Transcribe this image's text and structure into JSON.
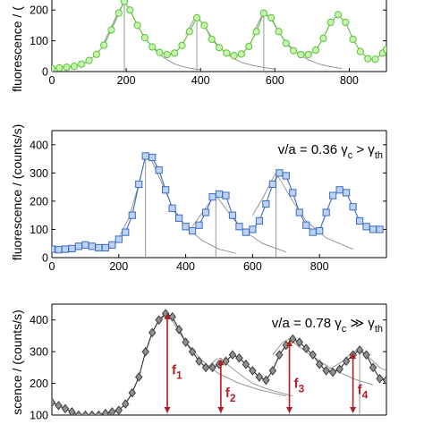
{
  "chart_data": [
    {
      "type": "scatter",
      "title": "",
      "ylabel": "fluorescence / (counts/s)",
      "ylabel_visible": "fluorescence / (",
      "annotation": "",
      "xlim": [
        0,
        900
      ],
      "ylim": [
        0,
        250
      ],
      "xticks": [
        0,
        200,
        400,
        600,
        800
      ],
      "yticks": [
        0,
        100,
        200
      ],
      "ytick_labels": [
        "0",
        "100",
        "200"
      ],
      "grid": false,
      "colors": {
        "marker_fill": "#c8f5b0",
        "marker_edge": "#59c23a",
        "line": "#59c23a",
        "fit": "#8c8c8c"
      },
      "marker": "circle",
      "series": [
        {
          "x": [
            0,
            20,
            40,
            60,
            80,
            100,
            120,
            140,
            160,
            180,
            195,
            210,
            230,
            250,
            270,
            290,
            310,
            330,
            350,
            370,
            390,
            410,
            430,
            450,
            470,
            490,
            510,
            530,
            550,
            570,
            590,
            610,
            630,
            650,
            670,
            690,
            710,
            730,
            750,
            770,
            790,
            810,
            830,
            850,
            870,
            890,
            900
          ],
          "values": [
            10,
            12,
            14,
            17,
            24,
            36,
            56,
            86,
            135,
            190,
            228,
            200,
            150,
            110,
            80,
            62,
            55,
            60,
            85,
            130,
            175,
            150,
            105,
            78,
            60,
            52,
            57,
            82,
            130,
            190,
            175,
            130,
            92,
            68,
            55,
            55,
            70,
            108,
            160,
            185,
            160,
            105,
            65,
            42,
            40,
            60,
            72
          ]
        }
      ],
      "fit_curves": [
        {
          "x": [
            140,
            160,
            180,
            195,
            210,
            230,
            250,
            270,
            290,
            310,
            330,
            350,
            370,
            400
          ],
          "values": [
            95,
            145,
            195,
            228,
            200,
            150,
            110,
            80,
            55,
            38,
            25,
            17,
            11,
            6
          ]
        },
        {
          "x": [
            360,
            380,
            390,
            410,
            430,
            450,
            470,
            490,
            510,
            540,
            570,
            600
          ],
          "values": [
            120,
            165,
            178,
            150,
            110,
            80,
            58,
            42,
            30,
            20,
            13,
            8
          ]
        },
        {
          "x": [
            540,
            560,
            570,
            590,
            610,
            630,
            650,
            670,
            690,
            720,
            750,
            780
          ],
          "values": [
            120,
            170,
            190,
            170,
            130,
            95,
            70,
            52,
            38,
            24,
            16,
            10
          ]
        }
      ]
    },
    {
      "type": "scatter",
      "title": "",
      "ylabel": "fluorescence / (counts/s)",
      "annotation": "v/a = 0.36 γc > γth",
      "xlim": [
        0,
        1000
      ],
      "ylim": [
        0,
        450
      ],
      "xticks": [
        0,
        200,
        400,
        600,
        800
      ],
      "yticks": [
        0,
        100,
        200,
        300,
        400
      ],
      "grid": false,
      "colors": {
        "marker_fill": "#bdd3f5",
        "marker_edge": "#3b6bbf",
        "line": "#3b6bbf",
        "fit": "#8c8c8c"
      },
      "marker": "square",
      "series": [
        {
          "x": [
            0,
            20,
            40,
            60,
            80,
            100,
            120,
            140,
            160,
            180,
            200,
            220,
            240,
            260,
            280,
            300,
            320,
            340,
            360,
            380,
            400,
            420,
            440,
            460,
            480,
            500,
            520,
            540,
            560,
            580,
            600,
            620,
            640,
            660,
            680,
            700,
            720,
            740,
            760,
            780,
            800,
            820,
            840,
            860,
            880,
            900,
            920,
            940,
            960,
            980
          ],
          "values": [
            30,
            28,
            30,
            32,
            40,
            45,
            40,
            35,
            35,
            45,
            65,
            90,
            150,
            260,
            360,
            355,
            310,
            240,
            175,
            140,
            110,
            95,
            115,
            160,
            215,
            225,
            220,
            150,
            110,
            90,
            100,
            130,
            190,
            260,
            300,
            290,
            230,
            160,
            115,
            90,
            95,
            160,
            220,
            240,
            230,
            180,
            130,
            110,
            100,
            100
          ]
        }
      ],
      "fit_curves": [
        {
          "x": [
            200,
            230,
            260,
            280,
            300,
            330,
            360,
            400,
            450,
            500,
            550
          ],
          "values": [
            70,
            140,
            260,
            360,
            340,
            260,
            180,
            110,
            60,
            30,
            15
          ]
        },
        {
          "x": [
            420,
            450,
            480,
            490,
            510,
            540,
            580,
            630,
            700
          ],
          "values": [
            110,
            160,
            210,
            220,
            190,
            140,
            90,
            50,
            20
          ]
        },
        {
          "x": [
            600,
            630,
            660,
            670,
            690,
            720,
            760,
            820,
            900
          ],
          "values": [
            150,
            210,
            280,
            300,
            260,
            200,
            130,
            70,
            30
          ]
        }
      ]
    },
    {
      "type": "scatter",
      "title": "",
      "ylabel": "fluorescence / (counts/s)",
      "ylabel_visible": "scence / (counts/s)",
      "annotation": "v/a = 0.78 γc ≫ γth",
      "xlim": [
        0,
        1000
      ],
      "ylim": [
        100,
        450
      ],
      "yticks": [
        100,
        200,
        300,
        400
      ],
      "grid": false,
      "colors": {
        "marker_fill": "#909090",
        "marker_edge": "#3c3c3c",
        "line": "#2a2a2a",
        "fit": "#8c8c8c",
        "arrows": "#b01e23"
      },
      "marker": "diamond",
      "series": [
        {
          "x": [
            0,
            20,
            40,
            60,
            80,
            100,
            120,
            140,
            160,
            180,
            200,
            220,
            240,
            260,
            280,
            300,
            320,
            340,
            360,
            380,
            400,
            420,
            440,
            460,
            480,
            500,
            520,
            540,
            560,
            580,
            600,
            620,
            640,
            660,
            680,
            700,
            720,
            740,
            760,
            780,
            800,
            820,
            840,
            860,
            880,
            900,
            920,
            940,
            960,
            980,
            1000
          ],
          "values": [
            140,
            130,
            120,
            110,
            100,
            100,
            100,
            100,
            105,
            110,
            115,
            135,
            170,
            220,
            300,
            360,
            400,
            420,
            410,
            370,
            330,
            300,
            270,
            250,
            250,
            260,
            270,
            290,
            280,
            260,
            240,
            220,
            210,
            240,
            290,
            320,
            340,
            330,
            310,
            290,
            260,
            240,
            235,
            245,
            270,
            290,
            305,
            290,
            250,
            215,
            210
          ]
        }
      ],
      "fit_curves": [
        {
          "x": [
            320,
            340,
            345,
            370,
            400,
            450,
            500,
            560,
            620,
            700
          ],
          "values": [
            390,
            420,
            425,
            380,
            330,
            270,
            230,
            200,
            180,
            160
          ]
        },
        {
          "x": [
            460,
            490,
            505,
            530,
            560,
            600,
            650,
            720
          ],
          "values": [
            245,
            275,
            280,
            255,
            230,
            200,
            180,
            160
          ]
        },
        {
          "x": [
            660,
            690,
            710,
            740,
            780,
            830,
            900,
            960
          ],
          "values": [
            290,
            330,
            340,
            315,
            285,
            250,
            215,
            195
          ]
        },
        {
          "x": [
            830,
            870,
            900,
            920,
            950,
            980,
            1000
          ],
          "values": [
            245,
            270,
            300,
            305,
            280,
            250,
            240
          ]
        }
      ],
      "arrows": [
        {
          "label": "f",
          "sub": "1",
          "x": 345,
          "from": 425,
          "to": 100
        },
        {
          "label": "f",
          "sub": "2",
          "x": 505,
          "from": 280,
          "to": 100
        },
        {
          "label": "f",
          "sub": "3",
          "x": 710,
          "from": 340,
          "to": 100
        },
        {
          "label": "f",
          "sub": "4",
          "x": 900,
          "from": 300,
          "to": 100
        }
      ]
    }
  ]
}
